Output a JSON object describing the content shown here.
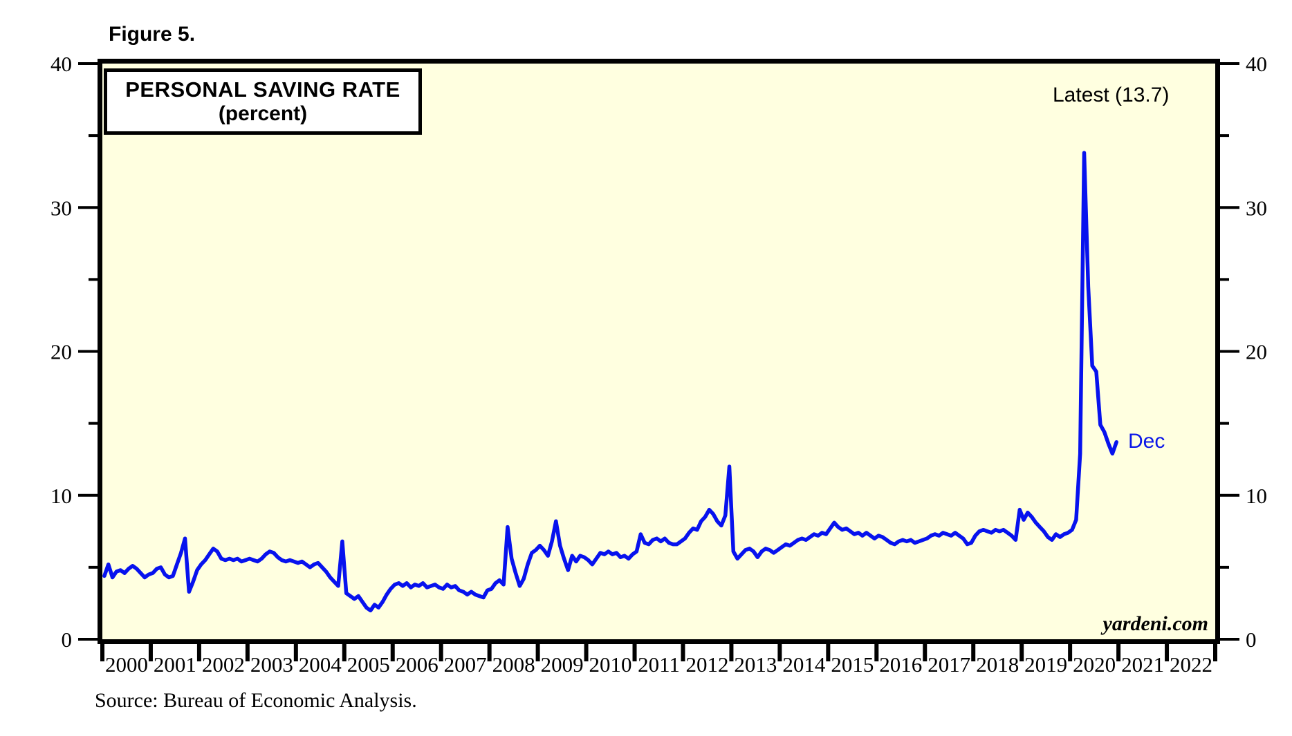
{
  "figure_label": "Figure 5.",
  "chart": {
    "title": "PERSONAL SAVING RATE",
    "subtitle": "(percent)",
    "latest_annotation": "Latest (13.7)",
    "series_end_label": "Dec",
    "watermark": "yardeni.com",
    "source": "Source: Bureau of Economic Analysis."
  },
  "chart_data": {
    "type": "line",
    "title": "PERSONAL SAVING RATE (percent)",
    "ylabel": "percent",
    "ylim": [
      0,
      40
    ],
    "y_ticks": [
      0,
      10,
      20,
      30,
      40
    ],
    "y_minor_ticks": [
      5,
      15,
      25,
      35
    ],
    "x_axis_years": [
      "2000",
      "2001",
      "2002",
      "2003",
      "2004",
      "2005",
      "2006",
      "2007",
      "2008",
      "2009",
      "2010",
      "2011",
      "2012",
      "2013",
      "2014",
      "2015",
      "2016",
      "2017",
      "2018",
      "2019",
      "2020",
      "2021",
      "2022"
    ],
    "x_axis_span_years": 23,
    "grid": false,
    "legend": false,
    "plot_bg_color": "#FFFFE0",
    "line_color": "#0712EE",
    "frame_color": "#000000",
    "latest_value": 13.7,
    "data_start": "2000-01",
    "data_end": "2020-12",
    "series": [
      {
        "name": "Personal Saving Rate",
        "frequency": "monthly",
        "values": [
          4.4,
          5.2,
          4.3,
          4.7,
          4.8,
          4.6,
          4.9,
          5.1,
          4.9,
          4.6,
          4.3,
          4.5,
          4.6,
          4.9,
          5.0,
          4.5,
          4.3,
          4.4,
          5.2,
          6.0,
          7.0,
          3.3,
          4.0,
          4.8,
          5.2,
          5.5,
          5.9,
          6.3,
          6.1,
          5.6,
          5.5,
          5.6,
          5.5,
          5.6,
          5.4,
          5.5,
          5.6,
          5.5,
          5.4,
          5.6,
          5.9,
          6.1,
          6.0,
          5.7,
          5.5,
          5.4,
          5.5,
          5.4,
          5.3,
          5.4,
          5.2,
          5.0,
          5.2,
          5.3,
          5.0,
          4.7,
          4.3,
          4.0,
          3.7,
          6.8,
          3.2,
          3.0,
          2.8,
          3.0,
          2.6,
          2.2,
          2.0,
          2.4,
          2.2,
          2.6,
          3.1,
          3.5,
          3.8,
          3.9,
          3.7,
          3.9,
          3.6,
          3.8,
          3.7,
          3.9,
          3.6,
          3.7,
          3.8,
          3.6,
          3.5,
          3.8,
          3.6,
          3.7,
          3.4,
          3.3,
          3.1,
          3.3,
          3.1,
          3.0,
          2.9,
          3.4,
          3.5,
          3.9,
          4.1,
          3.8,
          7.8,
          5.6,
          4.6,
          3.7,
          4.2,
          5.2,
          6.0,
          6.2,
          6.5,
          6.2,
          5.8,
          6.8,
          8.2,
          6.5,
          5.6,
          4.8,
          5.8,
          5.4,
          5.8,
          5.7,
          5.5,
          5.2,
          5.6,
          6.0,
          5.9,
          6.1,
          5.9,
          6.0,
          5.7,
          5.8,
          5.6,
          5.9,
          6.1,
          7.3,
          6.7,
          6.6,
          6.9,
          7.0,
          6.8,
          7.0,
          6.7,
          6.6,
          6.6,
          6.8,
          7.0,
          7.4,
          7.7,
          7.6,
          8.2,
          8.5,
          9.0,
          8.7,
          8.2,
          7.9,
          8.6,
          12.0,
          6.1,
          5.6,
          5.9,
          6.2,
          6.3,
          6.1,
          5.7,
          6.1,
          6.3,
          6.2,
          6.0,
          6.2,
          6.4,
          6.6,
          6.5,
          6.7,
          6.9,
          7.0,
          6.9,
          7.1,
          7.3,
          7.2,
          7.4,
          7.3,
          7.7,
          8.1,
          7.8,
          7.6,
          7.7,
          7.5,
          7.3,
          7.4,
          7.2,
          7.4,
          7.2,
          7.0,
          7.2,
          7.1,
          6.9,
          6.7,
          6.6,
          6.8,
          6.9,
          6.8,
          6.9,
          6.7,
          6.8,
          6.9,
          7.0,
          7.2,
          7.3,
          7.2,
          7.4,
          7.3,
          7.2,
          7.4,
          7.2,
          7.0,
          6.6,
          6.7,
          7.2,
          7.5,
          7.6,
          7.5,
          7.4,
          7.6,
          7.5,
          7.6,
          7.4,
          7.2,
          6.9,
          9.0,
          8.3,
          8.8,
          8.5,
          8.1,
          7.8,
          7.5,
          7.1,
          6.9,
          7.3,
          7.1,
          7.3,
          7.4,
          7.6,
          8.3,
          12.9,
          33.8,
          24.5,
          19.0,
          18.6,
          14.9,
          14.4,
          13.6,
          12.9,
          13.7
        ]
      }
    ],
    "annotations": [
      {
        "text": "Latest (13.7)",
        "position": "top-right"
      },
      {
        "text": "Dec",
        "attached_to": "last-point",
        "color": "#0712EE"
      }
    ]
  }
}
